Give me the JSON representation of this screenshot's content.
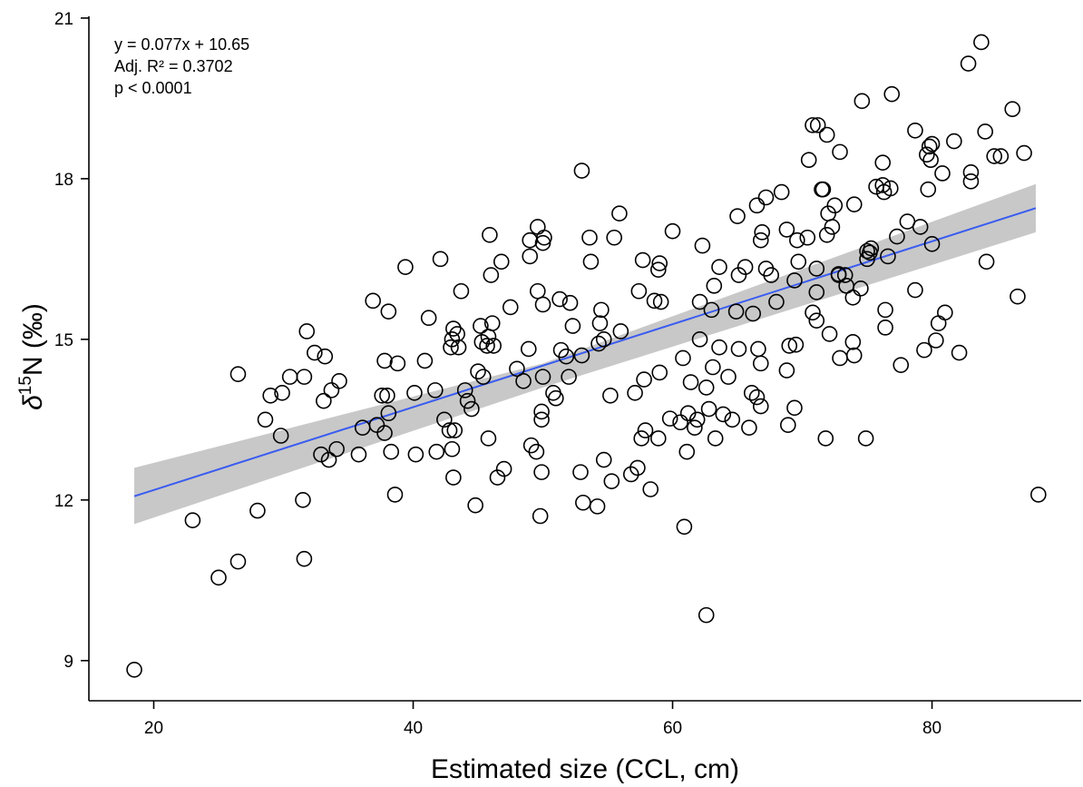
{
  "chart_data": {
    "type": "scatter",
    "xlabel": "Estimated size (CCL, cm)",
    "ylabel": {
      "prefix": "δ",
      "sup": "15",
      "suffix": "N (‰)"
    },
    "xlim": [
      15,
      91.5
    ],
    "ylim": [
      8.25,
      21.1
    ],
    "xticks": [
      20,
      40,
      60,
      80
    ],
    "yticks": [
      9,
      12,
      15,
      18,
      21
    ],
    "annotations": [
      "y = 0.077x + 10.65",
      "Adj. R² = 0.3702",
      "p < 0.0001"
    ],
    "fit_line": {
      "x": [
        18.5,
        88
      ],
      "y": [
        12.07,
        17.45
      ],
      "color": "#3a5cf0"
    },
    "confidence_band": {
      "x": [
        18.5,
        50,
        88
      ],
      "lower": [
        11.55,
        14.1,
        17.0
      ],
      "upper": [
        12.6,
        14.55,
        17.9
      ],
      "color": "#c8c8c8"
    },
    "grid": false,
    "legend": "none",
    "points": [
      [
        18.5,
        8.83
      ],
      [
        23,
        11.62
      ],
      [
        25,
        10.55
      ],
      [
        26.5,
        10.85
      ],
      [
        26.5,
        14.35
      ],
      [
        28,
        11.8
      ],
      [
        28.6,
        13.5
      ],
      [
        29,
        13.95
      ],
      [
        29.8,
        13.2
      ],
      [
        29.9,
        14.0
      ],
      [
        30.5,
        14.3
      ],
      [
        31.5,
        12.0
      ],
      [
        31.6,
        10.9
      ],
      [
        31.6,
        14.3
      ],
      [
        31.8,
        15.15
      ],
      [
        32.4,
        14.75
      ],
      [
        32.9,
        12.85
      ],
      [
        33.1,
        13.85
      ],
      [
        33.2,
        14.68
      ],
      [
        33.5,
        12.75
      ],
      [
        33.7,
        14.05
      ],
      [
        34.1,
        12.95
      ],
      [
        34.3,
        14.22
      ],
      [
        35.8,
        12.85
      ],
      [
        36.1,
        13.35
      ],
      [
        36.9,
        15.72
      ],
      [
        37.2,
        13.4
      ],
      [
        37.6,
        13.95
      ],
      [
        37.8,
        14.6
      ],
      [
        37.8,
        13.25
      ],
      [
        38.0,
        13.95
      ],
      [
        38.1,
        15.52
      ],
      [
        38.3,
        12.9
      ],
      [
        38.1,
        13.62
      ],
      [
        38.6,
        12.1
      ],
      [
        38.8,
        14.55
      ],
      [
        39.4,
        16.35
      ],
      [
        40.1,
        14.0
      ],
      [
        40.2,
        12.85
      ],
      [
        40.9,
        14.6
      ],
      [
        41.2,
        15.4
      ],
      [
        41.7,
        14.05
      ],
      [
        41.8,
        12.9
      ],
      [
        42.1,
        16.5
      ],
      [
        42.4,
        13.5
      ],
      [
        42.8,
        13.3
      ],
      [
        43.0,
        12.95
      ],
      [
        42.9,
        14.85
      ],
      [
        43.0,
        15.0
      ],
      [
        43.1,
        15.2
      ],
      [
        43.1,
        12.42
      ],
      [
        43.2,
        13.3
      ],
      [
        43.4,
        15.1
      ],
      [
        43.5,
        14.85
      ],
      [
        43.7,
        15.9
      ],
      [
        44.0,
        14.05
      ],
      [
        44.2,
        13.85
      ],
      [
        44.5,
        13.7
      ],
      [
        44.8,
        11.9
      ],
      [
        45.0,
        14.4
      ],
      [
        45.2,
        15.25
      ],
      [
        45.3,
        14.95
      ],
      [
        45.4,
        14.3
      ],
      [
        45.8,
        15.05
      ],
      [
        45.7,
        14.88
      ],
      [
        45.8,
        13.15
      ],
      [
        45.9,
        16.95
      ],
      [
        46.0,
        16.2
      ],
      [
        46.1,
        15.3
      ],
      [
        46.2,
        14.88
      ],
      [
        46.5,
        12.42
      ],
      [
        46.8,
        16.45
      ],
      [
        47.0,
        12.58
      ],
      [
        47.5,
        15.6
      ],
      [
        48.0,
        14.45
      ],
      [
        48.5,
        14.22
      ],
      [
        48.9,
        14.82
      ],
      [
        49.0,
        16.55
      ],
      [
        49.0,
        16.85
      ],
      [
        49.1,
        13.02
      ],
      [
        49.5,
        12.9
      ],
      [
        49.6,
        17.1
      ],
      [
        49.6,
        15.9
      ],
      [
        49.9,
        12.52
      ],
      [
        49.8,
        11.7
      ],
      [
        49.9,
        13.5
      ],
      [
        49.9,
        13.65
      ],
      [
        50.0,
        14.3
      ],
      [
        50.0,
        15.65
      ],
      [
        50.0,
        16.8
      ],
      [
        50.1,
        16.9
      ],
      [
        50.8,
        14.0
      ],
      [
        51.0,
        13.9
      ],
      [
        51.3,
        15.75
      ],
      [
        51.4,
        14.8
      ],
      [
        51.8,
        14.68
      ],
      [
        52.0,
        14.3
      ],
      [
        52.1,
        15.68
      ],
      [
        52.3,
        15.25
      ],
      [
        52.9,
        12.52
      ],
      [
        53.0,
        18.15
      ],
      [
        53.1,
        11.95
      ],
      [
        53.0,
        14.7
      ],
      [
        53.6,
        16.9
      ],
      [
        53.7,
        16.45
      ],
      [
        54.2,
        11.88
      ],
      [
        54.3,
        14.92
      ],
      [
        54.4,
        15.3
      ],
      [
        54.5,
        15.55
      ],
      [
        54.7,
        15.0
      ],
      [
        54.7,
        12.75
      ],
      [
        55.2,
        13.95
      ],
      [
        55.3,
        12.35
      ],
      [
        55.5,
        16.9
      ],
      [
        55.9,
        17.35
      ],
      [
        56.0,
        15.15
      ],
      [
        56.8,
        12.48
      ],
      [
        57.1,
        14.0
      ],
      [
        57.3,
        12.6
      ],
      [
        57.4,
        15.9
      ],
      [
        57.6,
        13.15
      ],
      [
        57.7,
        16.48
      ],
      [
        57.8,
        14.25
      ],
      [
        57.9,
        13.3
      ],
      [
        58.3,
        12.2
      ],
      [
        58.6,
        15.72
      ],
      [
        58.9,
        13.15
      ],
      [
        58.9,
        16.3
      ],
      [
        59.0,
        16.42
      ],
      [
        59.0,
        14.38
      ],
      [
        59.1,
        15.7
      ],
      [
        59.8,
        13.52
      ],
      [
        60.0,
        17.02
      ],
      [
        60.6,
        13.45
      ],
      [
        60.8,
        14.65
      ],
      [
        60.9,
        11.5
      ],
      [
        61.1,
        12.9
      ],
      [
        61.2,
        13.62
      ],
      [
        61.4,
        14.2
      ],
      [
        61.7,
        13.35
      ],
      [
        61.9,
        13.5
      ],
      [
        62.1,
        15.7
      ],
      [
        62.1,
        15.0
      ],
      [
        62.3,
        16.75
      ],
      [
        62.6,
        9.85
      ],
      [
        62.6,
        14.1
      ],
      [
        62.8,
        13.7
      ],
      [
        63.0,
        15.55
      ],
      [
        63.1,
        14.48
      ],
      [
        63.2,
        16.0
      ],
      [
        63.3,
        13.15
      ],
      [
        63.6,
        14.85
      ],
      [
        63.6,
        16.35
      ],
      [
        63.9,
        13.6
      ],
      [
        64.3,
        14.3
      ],
      [
        64.6,
        13.5
      ],
      [
        64.9,
        15.52
      ],
      [
        65.0,
        17.3
      ],
      [
        65.1,
        16.2
      ],
      [
        65.1,
        14.82
      ],
      [
        65.6,
        16.35
      ],
      [
        65.9,
        13.35
      ],
      [
        66.1,
        14.0
      ],
      [
        66.2,
        15.48
      ],
      [
        66.5,
        13.92
      ],
      [
        66.5,
        17.5
      ],
      [
        66.6,
        14.82
      ],
      [
        66.8,
        13.75
      ],
      [
        66.8,
        16.85
      ],
      [
        66.8,
        14.55
      ],
      [
        66.9,
        17.0
      ],
      [
        67.2,
        17.65
      ],
      [
        67.2,
        16.32
      ],
      [
        67.6,
        16.2
      ],
      [
        68.0,
        15.7
      ],
      [
        68.4,
        17.75
      ],
      [
        68.8,
        17.05
      ],
      [
        68.8,
        14.42
      ],
      [
        68.9,
        13.4
      ],
      [
        69.0,
        14.88
      ],
      [
        69.4,
        16.1
      ],
      [
        69.4,
        13.72
      ],
      [
        69.5,
        14.9
      ],
      [
        69.6,
        16.85
      ],
      [
        69.7,
        16.45
      ],
      [
        70.4,
        16.9
      ],
      [
        70.5,
        18.35
      ],
      [
        70.8,
        15.5
      ],
      [
        70.8,
        19.0
      ],
      [
        71.1,
        15.35
      ],
      [
        71.1,
        16.32
      ],
      [
        71.1,
        15.88
      ],
      [
        71.2,
        19.0
      ],
      [
        71.5,
        17.8
      ],
      [
        71.6,
        17.8
      ],
      [
        71.8,
        13.15
      ],
      [
        71.9,
        16.95
      ],
      [
        71.9,
        18.82
      ],
      [
        72.0,
        17.35
      ],
      [
        72.1,
        15.1
      ],
      [
        72.3,
        17.1
      ],
      [
        72.5,
        17.5
      ],
      [
        72.8,
        16.22
      ],
      [
        72.8,
        16.2
      ],
      [
        72.9,
        14.65
      ],
      [
        72.9,
        18.5
      ],
      [
        73.3,
        16.2
      ],
      [
        73.4,
        16.0
      ],
      [
        73.9,
        15.78
      ],
      [
        73.9,
        14.95
      ],
      [
        74.0,
        14.7
      ],
      [
        74.0,
        17.52
      ],
      [
        74.5,
        15.95
      ],
      [
        74.6,
        19.45
      ],
      [
        74.9,
        13.15
      ],
      [
        75.0,
        16.65
      ],
      [
        75.0,
        16.5
      ],
      [
        75.2,
        16.62
      ],
      [
        75.3,
        16.7
      ],
      [
        75.7,
        17.85
      ],
      [
        76.2,
        17.88
      ],
      [
        76.2,
        18.3
      ],
      [
        76.3,
        17.75
      ],
      [
        76.4,
        15.55
      ],
      [
        76.4,
        15.22
      ],
      [
        76.6,
        16.55
      ],
      [
        76.8,
        17.82
      ],
      [
        76.9,
        19.58
      ],
      [
        77.3,
        16.92
      ],
      [
        77.6,
        14.52
      ],
      [
        78.1,
        17.2
      ],
      [
        78.7,
        18.9
      ],
      [
        78.7,
        15.92
      ],
      [
        79.1,
        17.1
      ],
      [
        79.4,
        14.8
      ],
      [
        79.6,
        18.45
      ],
      [
        79.7,
        17.8
      ],
      [
        79.8,
        18.6
      ],
      [
        79.9,
        18.35
      ],
      [
        80.0,
        18.65
      ],
      [
        80.0,
        16.78
      ],
      [
        80.3,
        14.98
      ],
      [
        80.5,
        15.3
      ],
      [
        80.8,
        18.1
      ],
      [
        81.0,
        15.5
      ],
      [
        81.7,
        18.7
      ],
      [
        82.1,
        14.75
      ],
      [
        82.8,
        20.15
      ],
      [
        83.0,
        18.12
      ],
      [
        83.0,
        17.95
      ],
      [
        83.8,
        20.55
      ],
      [
        84.1,
        18.88
      ],
      [
        84.2,
        16.45
      ],
      [
        84.8,
        18.42
      ],
      [
        85.3,
        18.42
      ],
      [
        86.2,
        19.3
      ],
      [
        86.6,
        15.8
      ],
      [
        87.1,
        18.48
      ],
      [
        88.2,
        12.1
      ]
    ]
  }
}
